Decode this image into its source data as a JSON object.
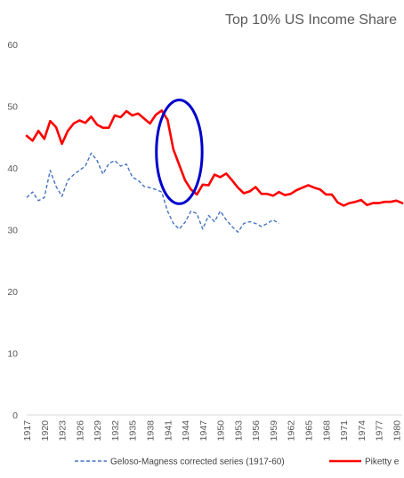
{
  "chart_data": {
    "type": "line",
    "title": "Top 10% US Income Share",
    "xlabel": "",
    "ylabel": "",
    "xlim": [
      1917,
      1981
    ],
    "ylim": [
      0,
      60
    ],
    "y_ticks": [
      0,
      10,
      20,
      30,
      40,
      50,
      60
    ],
    "x_tick_labels": [
      "1917",
      "1920",
      "1923",
      "1926",
      "1929",
      "1932",
      "1935",
      "1938",
      "1941",
      "1944",
      "1947",
      "1950",
      "1953",
      "1956",
      "1959",
      "1962",
      "1965",
      "1968",
      "1971",
      "1974",
      "1977",
      "1980"
    ],
    "grid": false,
    "legend_position": "bottom",
    "series": [
      {
        "name": "Geloso-Magness corrected series (1917-60)",
        "style": "dashed",
        "color": "#4472c4",
        "x": [
          1917,
          1918,
          1919,
          1920,
          1921,
          1922,
          1923,
          1924,
          1925,
          1926,
          1927,
          1928,
          1929,
          1930,
          1931,
          1932,
          1933,
          1934,
          1935,
          1936,
          1937,
          1938,
          1939,
          1940,
          1941,
          1942,
          1943,
          1944,
          1945,
          1946,
          1947,
          1948,
          1949,
          1950,
          1951,
          1952,
          1953,
          1954,
          1955,
          1956,
          1957,
          1958,
          1959,
          1960
        ],
        "y": [
          35.2,
          36.1,
          34.7,
          35.2,
          39.6,
          37.0,
          35.4,
          38.0,
          38.9,
          39.6,
          40.3,
          42.4,
          41.2,
          39.0,
          40.7,
          41.2,
          40.3,
          40.6,
          38.5,
          38.0,
          37.0,
          36.8,
          36.5,
          36.1,
          33.0,
          31.0,
          30.1,
          31.2,
          33.0,
          32.6,
          30.1,
          32.3,
          31.3,
          33.0,
          31.6,
          30.5,
          29.6,
          31.0,
          31.3,
          31.0,
          30.5,
          31.0,
          31.6,
          31.0
        ]
      },
      {
        "name": "Piketty e",
        "style": "solid",
        "color": "#ff0000",
        "x": [
          1917,
          1918,
          1919,
          1920,
          1921,
          1922,
          1923,
          1924,
          1925,
          1926,
          1927,
          1928,
          1929,
          1930,
          1931,
          1932,
          1933,
          1934,
          1935,
          1936,
          1937,
          1938,
          1939,
          1940,
          1941,
          1942,
          1943,
          1944,
          1945,
          1946,
          1947,
          1948,
          1949,
          1950,
          1951,
          1952,
          1953,
          1954,
          1955,
          1956,
          1957,
          1958,
          1959,
          1960,
          1961,
          1962,
          1963,
          1964,
          1965,
          1966,
          1967,
          1968,
          1969,
          1970,
          1971,
          1972,
          1973,
          1974,
          1975,
          1976,
          1977,
          1978,
          1979,
          1980,
          1981
        ],
        "y": [
          45.2,
          44.4,
          46.0,
          44.7,
          47.6,
          46.6,
          43.9,
          46.0,
          47.2,
          47.7,
          47.3,
          48.3,
          47.0,
          46.5,
          46.5,
          48.5,
          48.2,
          49.2,
          48.5,
          48.8,
          48.0,
          47.2,
          48.6,
          49.3,
          47.8,
          43.0,
          40.5,
          38.0,
          36.5,
          35.7,
          37.3,
          37.2,
          38.9,
          38.5,
          39.1,
          38.0,
          36.8,
          35.9,
          36.2,
          36.9,
          35.8,
          35.8,
          35.5,
          36.1,
          35.6,
          35.8,
          36.4,
          36.8,
          37.2,
          36.8,
          36.5,
          35.7,
          35.7,
          34.4,
          33.9,
          34.3,
          34.5,
          34.8,
          34.0,
          34.3,
          34.3,
          34.5,
          34.5,
          34.7,
          34.3
        ]
      }
    ],
    "annotations": [
      {
        "type": "ellipse",
        "color": "#0000cc",
        "x_center": 1943.0,
        "y_center": 42.6,
        "x_radius": 3.9,
        "y_radius": 8.4
      }
    ]
  }
}
